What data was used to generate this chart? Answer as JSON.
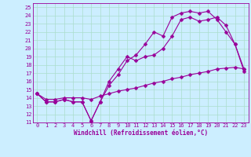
{
  "xlabel": "Windchill (Refroidissement éolien,°C)",
  "bg_color": "#cceeff",
  "line_color": "#990099",
  "grid_color": "#aaddcc",
  "xlim": [
    -0.5,
    23.5
  ],
  "ylim": [
    11,
    25.5
  ],
  "xticks": [
    0,
    1,
    2,
    3,
    4,
    5,
    6,
    7,
    8,
    9,
    10,
    11,
    12,
    13,
    14,
    15,
    16,
    17,
    18,
    19,
    20,
    21,
    22,
    23
  ],
  "yticks": [
    11,
    12,
    13,
    14,
    15,
    16,
    17,
    18,
    19,
    20,
    21,
    22,
    23,
    24,
    25
  ],
  "line1_x": [
    0,
    1,
    2,
    3,
    4,
    5,
    6,
    7,
    8,
    9,
    10,
    11,
    12,
    13,
    14,
    15,
    16,
    17,
    18,
    19,
    20,
    21,
    22,
    23
  ],
  "line1_y": [
    14.5,
    13.5,
    13.5,
    13.8,
    13.5,
    13.5,
    11.2,
    13.5,
    16.0,
    17.5,
    19.0,
    18.5,
    19.0,
    19.2,
    20.0,
    21.5,
    23.5,
    23.8,
    23.3,
    23.5,
    23.8,
    22.8,
    20.5,
    17.5
  ],
  "line2_x": [
    0,
    1,
    2,
    3,
    4,
    5,
    6,
    7,
    8,
    9,
    10,
    11,
    12,
    13,
    14,
    15,
    16,
    17,
    18,
    19,
    20,
    21,
    22,
    23
  ],
  "line2_y": [
    14.5,
    13.5,
    13.5,
    13.8,
    13.5,
    13.5,
    11.2,
    13.5,
    15.5,
    16.8,
    18.5,
    19.2,
    20.5,
    22.0,
    21.5,
    23.8,
    24.3,
    24.5,
    24.3,
    24.5,
    23.5,
    22.0,
    20.5,
    17.2
  ],
  "line3_x": [
    0,
    1,
    2,
    3,
    4,
    5,
    6,
    7,
    8,
    9,
    10,
    11,
    12,
    13,
    14,
    15,
    16,
    17,
    18,
    19,
    20,
    21,
    22,
    23
  ],
  "line3_y": [
    14.5,
    13.8,
    13.8,
    14.0,
    14.0,
    14.0,
    13.8,
    14.2,
    14.5,
    14.8,
    15.0,
    15.2,
    15.5,
    15.8,
    16.0,
    16.3,
    16.5,
    16.8,
    17.0,
    17.2,
    17.5,
    17.6,
    17.7,
    17.5
  ],
  "marker_size": 2.5,
  "line_width": 0.8,
  "tick_fontsize": 5,
  "xlabel_fontsize": 5.5
}
